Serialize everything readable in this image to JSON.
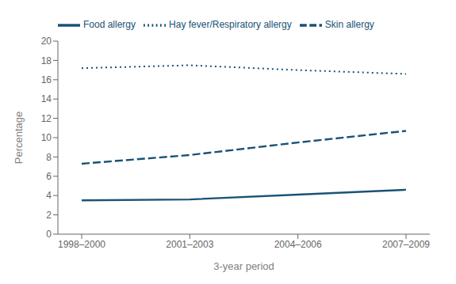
{
  "chart_data": {
    "type": "line",
    "x_label": "3-year period",
    "y_label": "Percentage",
    "categories": [
      "1998–2000",
      "2001–2003",
      "2004–2006",
      "2007–2009"
    ],
    "series": [
      {
        "name": "Food allergy",
        "color": "#1a5276",
        "line_style": "solid",
        "values": [
          3.5,
          3.6,
          4.1,
          4.6
        ]
      },
      {
        "name": "Skin allergy",
        "color": "#1a5276",
        "line_style": "dashed",
        "values": [
          7.3,
          8.2,
          9.5,
          10.7
        ]
      },
      {
        "name": "Hay fever/Respiratory allergy",
        "color": "#1a5276",
        "line_style": "dotted",
        "values": [
          17.2,
          17.5,
          17.0,
          16.6
        ]
      }
    ],
    "ylim": [
      0,
      20
    ],
    "yticks": [
      0,
      2,
      4,
      6,
      8,
      10,
      12,
      14,
      16,
      18,
      20
    ],
    "grid": false,
    "legend": "upper left"
  }
}
